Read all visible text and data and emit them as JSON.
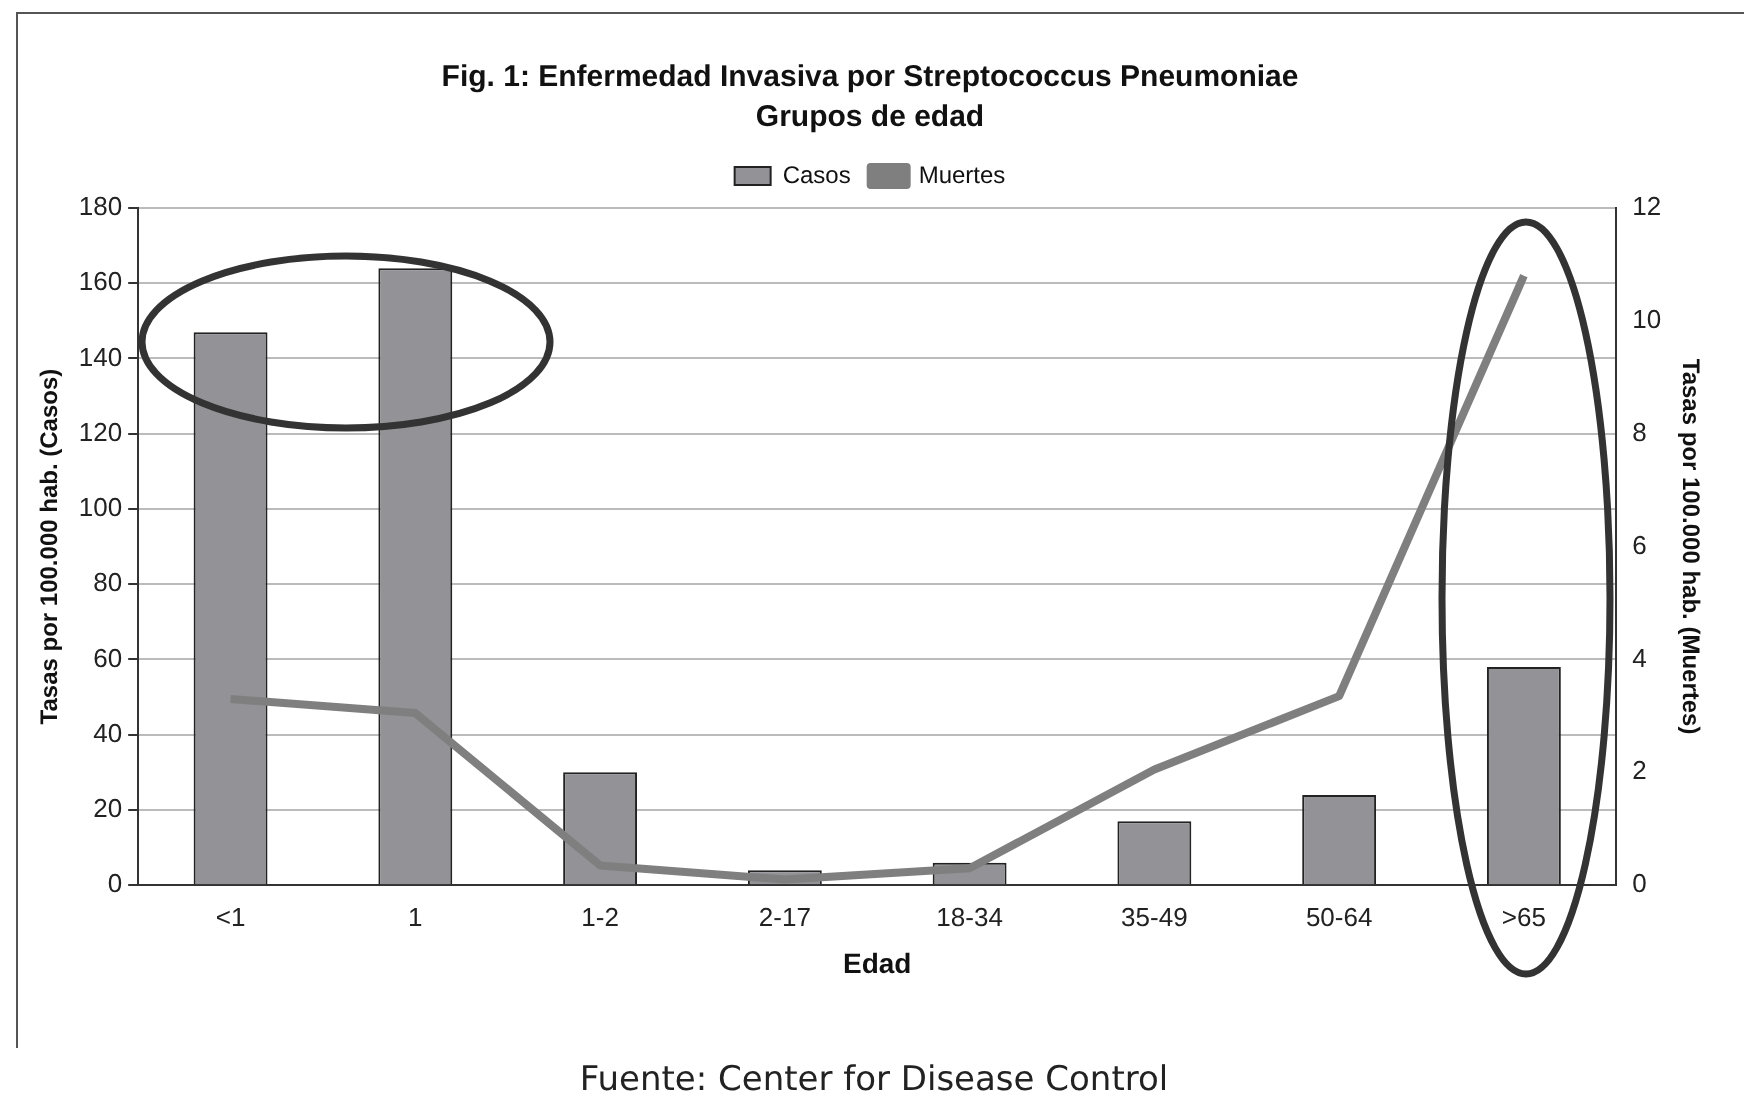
{
  "chart_data": {
    "type": "bar",
    "title": "Fig. 1: Enfermedad Invasiva por Streptococcus Pneumoniae",
    "subtitle": "Grupos de edad",
    "xlabel": "Edad",
    "ylabel": "Tasas por 100.000 hab. (Casos)",
    "y2label": "Tasas por 100.000 hab. (Muertes)",
    "categories": [
      "<1",
      "1",
      "1-2",
      "2-17",
      "18-34",
      "35-49",
      "50-64",
      ">65"
    ],
    "series": [
      {
        "name": "Casos",
        "color": "#929297",
        "values": [
          147,
          164,
          30,
          4,
          6,
          17,
          24,
          58
        ]
      },
      {
        "name": "Muertes",
        "type": "line",
        "axis": "y2",
        "color": "#7f7f7f",
        "values": [
          3.3,
          3.05,
          0.35,
          0.1,
          0.3,
          2.05,
          3.35,
          10.8
        ]
      }
    ],
    "ylim": [
      0,
      180
    ],
    "yticks": [
      0,
      20,
      40,
      60,
      80,
      100,
      120,
      140,
      160,
      180
    ],
    "y2lim": [
      0,
      12
    ],
    "y2ticks": [
      0,
      2,
      4,
      6,
      8,
      10,
      12
    ],
    "grid": "y",
    "legend": "top",
    "marker": "none",
    "line_style": "solid",
    "annotations": [
      "Fuente: Center for Disease Control"
    ]
  }
}
